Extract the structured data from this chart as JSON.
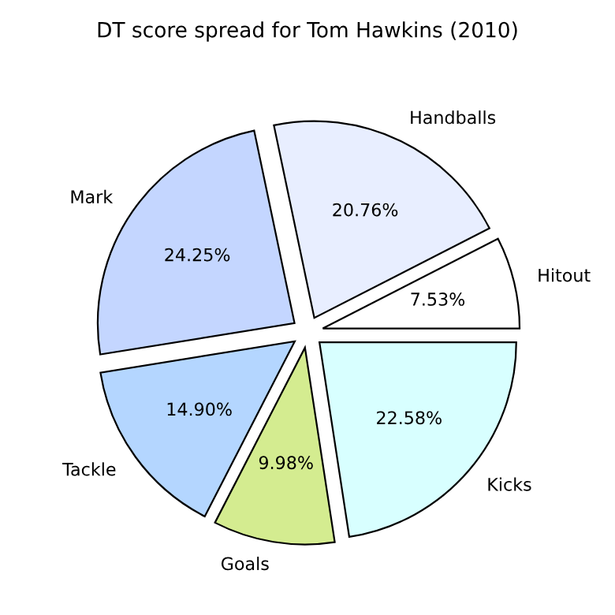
{
  "chart_data": {
    "type": "pie",
    "title": "DT score spread for Tom Hawkins (2010)",
    "categories": [
      "Hitout",
      "Handballs",
      "Mark",
      "Tackle",
      "Goals",
      "Kicks"
    ],
    "values": [
      7.53,
      20.76,
      24.25,
      14.9,
      9.98,
      22.58
    ],
    "value_labels": [
      "7.53%",
      "20.76%",
      "24.25%",
      "14.90%",
      "9.98%",
      "22.58%"
    ],
    "colors": [
      "#ffffff",
      "#e8eeff",
      "#c4d6ff",
      "#b4d6ff",
      "#d4ec90",
      "#d8ffff"
    ]
  }
}
